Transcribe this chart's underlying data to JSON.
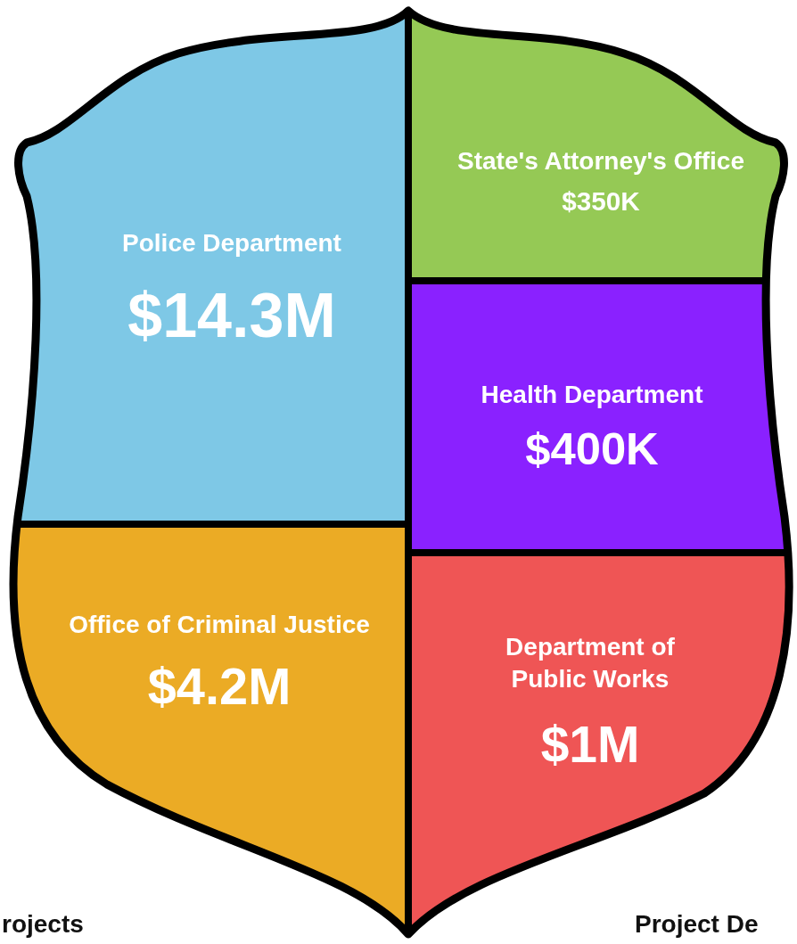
{
  "chart_data": {
    "type": "other",
    "categories": [
      "Police Department",
      "State's Attorney's Office",
      "Health Department",
      "Office of Criminal Justice",
      "Department of Public Works"
    ],
    "values": [
      14300000,
      350000,
      400000,
      4200000,
      1000000
    ],
    "value_labels": [
      "$14.3M",
      "$350K",
      "$400K",
      "$4.2M",
      "$1M"
    ],
    "colors": [
      "#7ec8e6",
      "#95c955",
      "#8a21ff",
      "#ebab25",
      "#ef5555"
    ],
    "annotations": [
      "rojects",
      "Project De"
    ]
  }
}
